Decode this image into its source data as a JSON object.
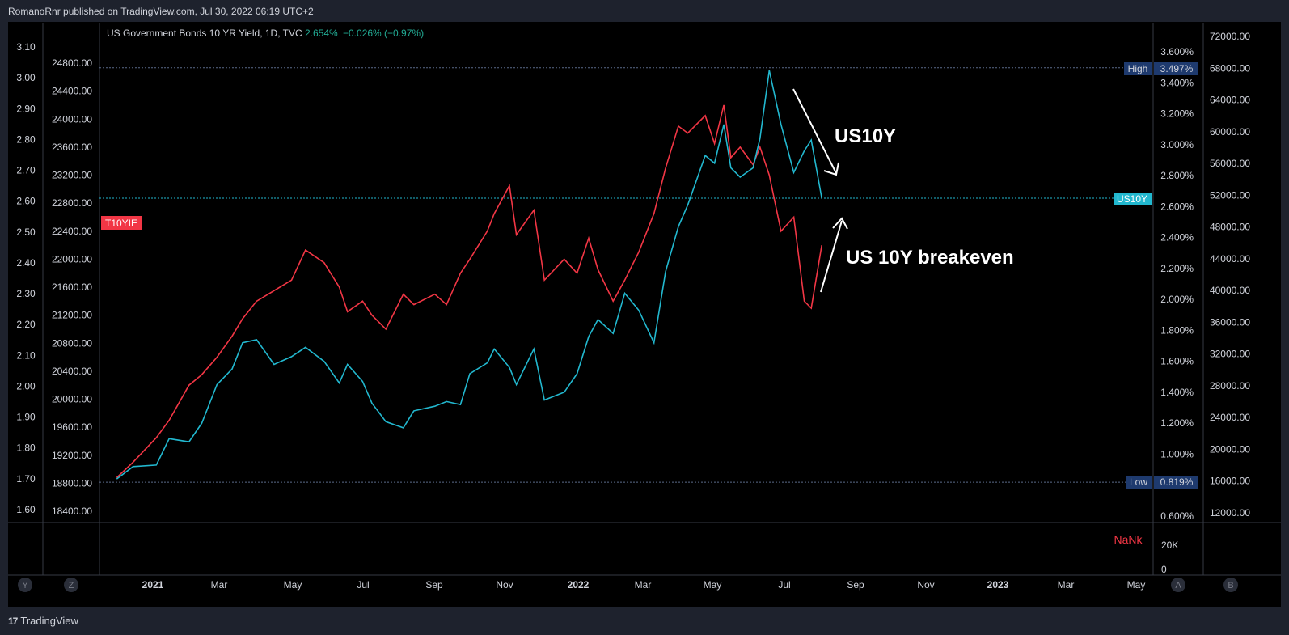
{
  "header": {
    "published": "RomanoRnr published on TradingView.com, Jul 30, 2022 06:19 UTC+2"
  },
  "legend": {
    "symbol": "US Government Bonds 10 YR Yield, 1D, TVC",
    "last": "2.654%",
    "change": "−0.026% (−0.97%)",
    "change_color": "#22ab94"
  },
  "colors": {
    "us10y": "#22b8cf",
    "t10yie": "#f23645",
    "accent_box": "#1e3a6e",
    "bg": "#000000",
    "frame": "#1e222d"
  },
  "footer": {
    "brand": "TradingView",
    "logo": "17"
  },
  "axes": {
    "left_outer_ticks": [
      "3.10",
      "3.00",
      "2.90",
      "2.80",
      "2.70",
      "2.60",
      "2.50",
      "2.40",
      "2.30",
      "2.20",
      "2.10",
      "2.00",
      "1.90",
      "1.80",
      "1.70",
      "1.60"
    ],
    "left_inner_ticks": [
      "24800.00",
      "24400.00",
      "24000.00",
      "23600.00",
      "23200.00",
      "22800.00",
      "22400.00",
      "22000.00",
      "21600.00",
      "21200.00",
      "20800.00",
      "20400.00",
      "20000.00",
      "19600.00",
      "19200.00",
      "18800.00",
      "18400.00"
    ],
    "right_inner_ticks": [
      "3.600%",
      "3.400%",
      "3.200%",
      "3.000%",
      "2.800%",
      "2.600%",
      "2.400%",
      "2.200%",
      "2.000%",
      "1.800%",
      "1.600%",
      "1.400%",
      "1.200%",
      "1.000%",
      "0.800%",
      "0.600%"
    ],
    "right_outer_ticks": [
      "72000.00",
      "68000.00",
      "64000.00",
      "60000.00",
      "56000.00",
      "52000.00",
      "48000.00",
      "44000.00",
      "40000.00",
      "36000.00",
      "32000.00",
      "28000.00",
      "24000.00",
      "20000.00",
      "16000.00",
      "12000.00"
    ],
    "volume_ticks": [
      "20K",
      "0"
    ],
    "x_ticks": [
      {
        "label": "2021",
        "bold": true
      },
      {
        "label": "Mar",
        "bold": false
      },
      {
        "label": "May",
        "bold": false
      },
      {
        "label": "Jul",
        "bold": false
      },
      {
        "label": "Sep",
        "bold": false
      },
      {
        "label": "Nov",
        "bold": false
      },
      {
        "label": "2022",
        "bold": true
      },
      {
        "label": "Mar",
        "bold": false
      },
      {
        "label": "May",
        "bold": false
      },
      {
        "label": "Jul",
        "bold": false
      },
      {
        "label": "Sep",
        "bold": false
      },
      {
        "label": "Nov",
        "bold": false
      },
      {
        "label": "2023",
        "bold": true
      },
      {
        "label": "Mar",
        "bold": false
      },
      {
        "label": "May",
        "bold": false
      }
    ],
    "corner_buttons": [
      "Y",
      "Z",
      "A",
      "B"
    ]
  },
  "markers": {
    "high_label": "High",
    "high_value": "3.497%",
    "low_label": "Low",
    "low_value": "0.819%",
    "us10y_tag": "US10Y",
    "t10yie_tag": "T10YIE",
    "volume_value": "NaNk"
  },
  "annotations": {
    "us10y": "US10Y",
    "breakeven": "US 10Y breakeven"
  },
  "chart_data": {
    "type": "line",
    "x_range": [
      "2020-12-01",
      "2022-07-29"
    ],
    "series": [
      {
        "name": "US10Y",
        "axis": "right",
        "unit": "%",
        "x": [
          "2020-12-01",
          "2020-12-15",
          "2021-01-04",
          "2021-01-15",
          "2021-02-01",
          "2021-02-12",
          "2021-02-25",
          "2021-03-10",
          "2021-03-19",
          "2021-03-31",
          "2021-04-15",
          "2021-04-30",
          "2021-05-12",
          "2021-05-28",
          "2021-06-10",
          "2021-06-17",
          "2021-06-30",
          "2021-07-08",
          "2021-07-20",
          "2021-08-04",
          "2021-08-13",
          "2021-08-31",
          "2021-09-10",
          "2021-09-22",
          "2021-09-30",
          "2021-10-15",
          "2021-10-21",
          "2021-11-03",
          "2021-11-09",
          "2021-11-24",
          "2021-12-03",
          "2021-12-20",
          "2021-12-31",
          "2022-01-10",
          "2022-01-18",
          "2022-01-31",
          "2022-02-10",
          "2022-02-22",
          "2022-03-07",
          "2022-03-17",
          "2022-03-28",
          "2022-04-05",
          "2022-04-20",
          "2022-04-28",
          "2022-05-06",
          "2022-05-12",
          "2022-05-20",
          "2022-05-31",
          "2022-06-06",
          "2022-06-14",
          "2022-06-24",
          "2022-07-05",
          "2022-07-14",
          "2022-07-20",
          "2022-07-29"
        ],
        "y": [
          0.84,
          0.92,
          0.93,
          1.1,
          1.08,
          1.2,
          1.45,
          1.55,
          1.72,
          1.74,
          1.58,
          1.63,
          1.69,
          1.6,
          1.46,
          1.58,
          1.47,
          1.33,
          1.21,
          1.17,
          1.28,
          1.31,
          1.34,
          1.32,
          1.52,
          1.59,
          1.68,
          1.56,
          1.45,
          1.68,
          1.35,
          1.4,
          1.52,
          1.76,
          1.87,
          1.78,
          2.04,
          1.93,
          1.72,
          2.18,
          2.47,
          2.61,
          2.93,
          2.88,
          3.13,
          2.85,
          2.79,
          2.85,
          3.04,
          3.48,
          3.13,
          2.82,
          2.96,
          3.03,
          2.654
        ]
      },
      {
        "name": "T10YIE",
        "axis": "left-inner",
        "unit": "",
        "x": [
          "2020-12-01",
          "2020-12-15",
          "2021-01-04",
          "2021-01-15",
          "2021-02-01",
          "2021-02-12",
          "2021-02-25",
          "2021-03-10",
          "2021-03-19",
          "2021-03-31",
          "2021-04-15",
          "2021-04-30",
          "2021-05-12",
          "2021-05-28",
          "2021-06-10",
          "2021-06-17",
          "2021-06-30",
          "2021-07-08",
          "2021-07-20",
          "2021-08-04",
          "2021-08-13",
          "2021-08-31",
          "2021-09-10",
          "2021-09-22",
          "2021-09-30",
          "2021-10-15",
          "2021-10-21",
          "2021-11-03",
          "2021-11-09",
          "2021-11-24",
          "2021-12-03",
          "2021-12-20",
          "2021-12-31",
          "2022-01-10",
          "2022-01-18",
          "2022-01-31",
          "2022-02-10",
          "2022-02-22",
          "2022-03-07",
          "2022-03-17",
          "2022-03-28",
          "2022-04-05",
          "2022-04-20",
          "2022-04-28",
          "2022-05-06",
          "2022-05-12",
          "2022-05-20",
          "2022-05-31",
          "2022-06-06",
          "2022-06-14",
          "2022-06-24",
          "2022-07-05",
          "2022-07-14",
          "2022-07-20",
          "2022-07-29"
        ],
        "y": [
          18880,
          19100,
          19450,
          19700,
          20200,
          20350,
          20600,
          20900,
          21150,
          21400,
          21550,
          21700,
          22130,
          21950,
          21600,
          21250,
          21400,
          21200,
          21000,
          21500,
          21350,
          21500,
          21350,
          21800,
          22000,
          22400,
          22650,
          23050,
          22350,
          22700,
          21700,
          22000,
          21800,
          22300,
          21850,
          21400,
          21700,
          22100,
          22650,
          23300,
          23900,
          23800,
          24050,
          23650,
          24200,
          23450,
          23600,
          23350,
          23600,
          23200,
          22400,
          22600,
          21400,
          21300,
          22200
        ]
      }
    ],
    "ylim_right": [
      0.6,
      3.7
    ],
    "ylim_left_inner": [
      18400,
      24800
    ],
    "high": 3.497,
    "low": 0.819,
    "last": 2.654,
    "grid": false,
    "annotations": [
      "US10Y",
      "US 10Y breakeven"
    ]
  }
}
